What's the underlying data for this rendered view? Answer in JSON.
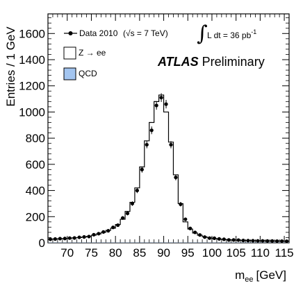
{
  "chart_data": {
    "type": "histogram",
    "xlabel_main": "m",
    "xlabel_sub": "ee",
    "xlabel_unit": "[GeV]",
    "ylabel": "Entries / 1 GeV",
    "xlim": [
      66,
      116
    ],
    "ylim": [
      0,
      1750
    ],
    "x_ticks": [
      70,
      75,
      80,
      85,
      90,
      95,
      100,
      105,
      110,
      115
    ],
    "y_ticks": [
      0,
      200,
      400,
      600,
      800,
      1000,
      1200,
      1400,
      1600
    ],
    "bin_width": 1,
    "bin_edges_start": 66,
    "series": [
      {
        "name": "Z → ee",
        "style": "step",
        "color": "#000000",
        "values": [
          28,
          30,
          31,
          33,
          35,
          38,
          40,
          44,
          50,
          58,
          68,
          80,
          95,
          112,
          140,
          180,
          240,
          310,
          420,
          580,
          780,
          920,
          1080,
          1130,
          1000,
          770,
          520,
          300,
          160,
          105,
          75,
          58,
          46,
          38,
          33,
          29,
          26,
          24,
          22,
          20,
          19,
          18,
          17,
          16,
          16,
          15,
          15,
          14,
          14,
          13
        ]
      },
      {
        "name": "QCD",
        "style": "fill",
        "color": "#a3c5f0",
        "values": [
          2,
          2,
          2,
          2,
          2,
          2,
          2,
          2,
          2,
          2,
          2,
          2,
          2,
          2,
          2,
          2,
          2,
          2,
          2,
          2,
          2,
          2,
          2,
          2,
          2,
          2,
          2,
          2,
          2,
          2,
          2,
          2,
          2,
          2,
          2,
          2,
          2,
          2,
          2,
          2,
          2,
          2,
          2,
          2,
          2,
          2,
          2,
          2,
          2,
          2
        ]
      },
      {
        "name": "Data 2010",
        "style": "points",
        "color": "#000000",
        "values": [
          27,
          29,
          32,
          33,
          36,
          37,
          42,
          45,
          48,
          62,
          70,
          83,
          92,
          118,
          135,
          190,
          225,
          300,
          400,
          560,
          750,
          860,
          1050,
          1110,
          1060,
          750,
          500,
          295,
          180,
          110,
          80,
          60,
          44,
          36,
          35,
          30,
          27,
          22,
          22,
          21,
          18,
          17,
          16,
          15,
          15,
          14,
          14,
          13,
          13,
          12
        ]
      }
    ],
    "legend": {
      "data_label": "Data 2010",
      "sqrt_s": "(√s = 7 TeV)",
      "z_label": "Z → ee",
      "qcd_label": "QCD"
    },
    "lumi": {
      "integral": "∫",
      "text": "L dt = 36 pb",
      "sup": "-1"
    },
    "atlas": {
      "bold": "ATLAS",
      "rest": "Preliminary"
    }
  }
}
